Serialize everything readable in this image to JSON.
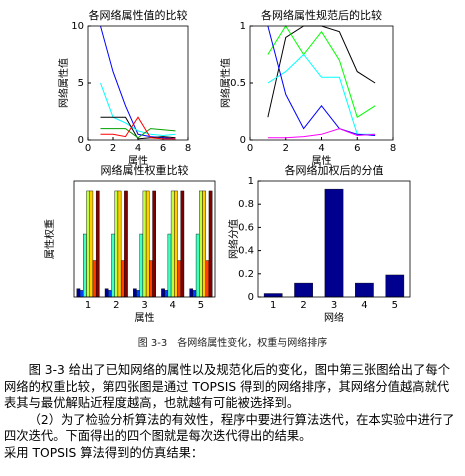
{
  "chart_data": [
    {
      "type": "line",
      "title": "各网络属性值的比较",
      "xlabel": "属性",
      "ylabel": "网络属性值",
      "x": [
        1,
        2,
        3,
        4,
        5,
        6,
        7
      ],
      "xlim": [
        0,
        8
      ],
      "xticks": [
        0,
        2,
        4,
        6,
        8
      ],
      "ylim": [
        0,
        10
      ],
      "yticks": [
        0,
        5,
        10
      ],
      "series": [
        {
          "color": "#0000ff",
          "values": [
            10,
            6,
            3,
            0.5,
            0.3,
            0.2,
            0.1
          ]
        },
        {
          "color": "#00ffff",
          "values": [
            5,
            2,
            1.5,
            0.8,
            0.5,
            0.4,
            0.5
          ]
        },
        {
          "color": "#000000",
          "values": [
            2,
            2,
            2,
            0.1,
            0.2,
            0.3,
            0.2
          ]
        },
        {
          "color": "#00a000",
          "values": [
            1,
            1,
            1,
            0.2,
            1,
            0.9,
            0.8
          ]
        },
        {
          "color": "#ff0000",
          "values": [
            0.5,
            0.5,
            0.3,
            2,
            0.2,
            0.1,
            0.1
          ]
        }
      ]
    },
    {
      "type": "line",
      "title": "各网络属性规范后的比较",
      "xlabel": "属性",
      "ylabel": "网络属性值",
      "x": [
        1,
        2,
        3,
        4,
        5,
        6,
        7
      ],
      "xlim": [
        0,
        8
      ],
      "xticks": [
        0,
        2,
        4,
        6,
        8
      ],
      "ylim": [
        0,
        1
      ],
      "yticks": [
        0,
        0.5,
        1
      ],
      "series": [
        {
          "color": "#000000",
          "values": [
            0.2,
            0.9,
            1,
            1,
            0.95,
            0.6,
            0.5
          ]
        },
        {
          "color": "#00ff00",
          "values": [
            0.75,
            1,
            0.75,
            0.95,
            0.7,
            0.2,
            0.3
          ]
        },
        {
          "color": "#00ffff",
          "values": [
            0.5,
            0.6,
            0.75,
            0.55,
            0.55,
            0.05,
            0.05
          ]
        },
        {
          "color": "#0000ff",
          "values": [
            1,
            0.4,
            0.1,
            0.3,
            0.1,
            0.05,
            0.04
          ]
        },
        {
          "color": "#ff00ff",
          "values": [
            0.02,
            0.02,
            0.03,
            0.05,
            0.1,
            0.04,
            0.05
          ]
        }
      ]
    },
    {
      "type": "bar",
      "title": "网络属性权重比较",
      "xlabel": "属性",
      "ylabel": "属性权重",
      "categories": [
        "1",
        "2",
        "3",
        "4",
        "5"
      ],
      "ylim": [
        0,
        0.35
      ],
      "series": [
        {
          "color": "#000090",
          "values": [
            0.025,
            0.025,
            0.025,
            0.025,
            0.025
          ]
        },
        {
          "color": "#0040ff",
          "values": [
            0.02,
            0.02,
            0.02,
            0.02,
            0.02
          ]
        },
        {
          "color": "#40ffbf",
          "values": [
            0.19,
            0.19,
            0.19,
            0.19,
            0.19
          ]
        },
        {
          "color": "#bfff40",
          "values": [
            0.32,
            0.32,
            0.32,
            0.32,
            0.32
          ]
        },
        {
          "color": "#ffcf00",
          "values": [
            0.32,
            0.32,
            0.32,
            0.32,
            0.32
          ]
        },
        {
          "color": "#ff4000",
          "values": [
            0.11,
            0.11,
            0.11,
            0.11,
            0.11
          ]
        },
        {
          "color": "#800000",
          "values": [
            0.32,
            0.32,
            0.32,
            0.32,
            0.32
          ]
        }
      ]
    },
    {
      "type": "bar",
      "title": "各网络加权后的分值",
      "xlabel": "网络",
      "ylabel": "网络分值",
      "categories": [
        "1",
        "2",
        "3",
        "4",
        "5"
      ],
      "ylim": [
        0,
        1
      ],
      "yticks": [
        0,
        0.2,
        0.4,
        0.6,
        0.8,
        1
      ],
      "series": [
        {
          "color": "#00008f",
          "values": [
            0.03,
            0.12,
            0.93,
            0.12,
            0.19
          ]
        }
      ]
    }
  ],
  "caption": "图 3-3　各网络属性变化，权重与网络排序",
  "paragraphs": [
    "图 3-3 给出了已知网络的属性以及规范化后的变化，图中第三张图给出了每个网络的权重比较，第四张图是通过 TOPSIS 得到的网络排序，其网络分值越高就代表其与最优解贴近程度越高，也就越有可能被选择到。",
    "（2）为了检验分析算法的有效性，程序中要进行算法迭代，在本实验中进行了四次迭代。下面得出的四个图就是每次迭代得出的结果。",
    "采用 TOPSIS 算法得到的仿真结果："
  ]
}
